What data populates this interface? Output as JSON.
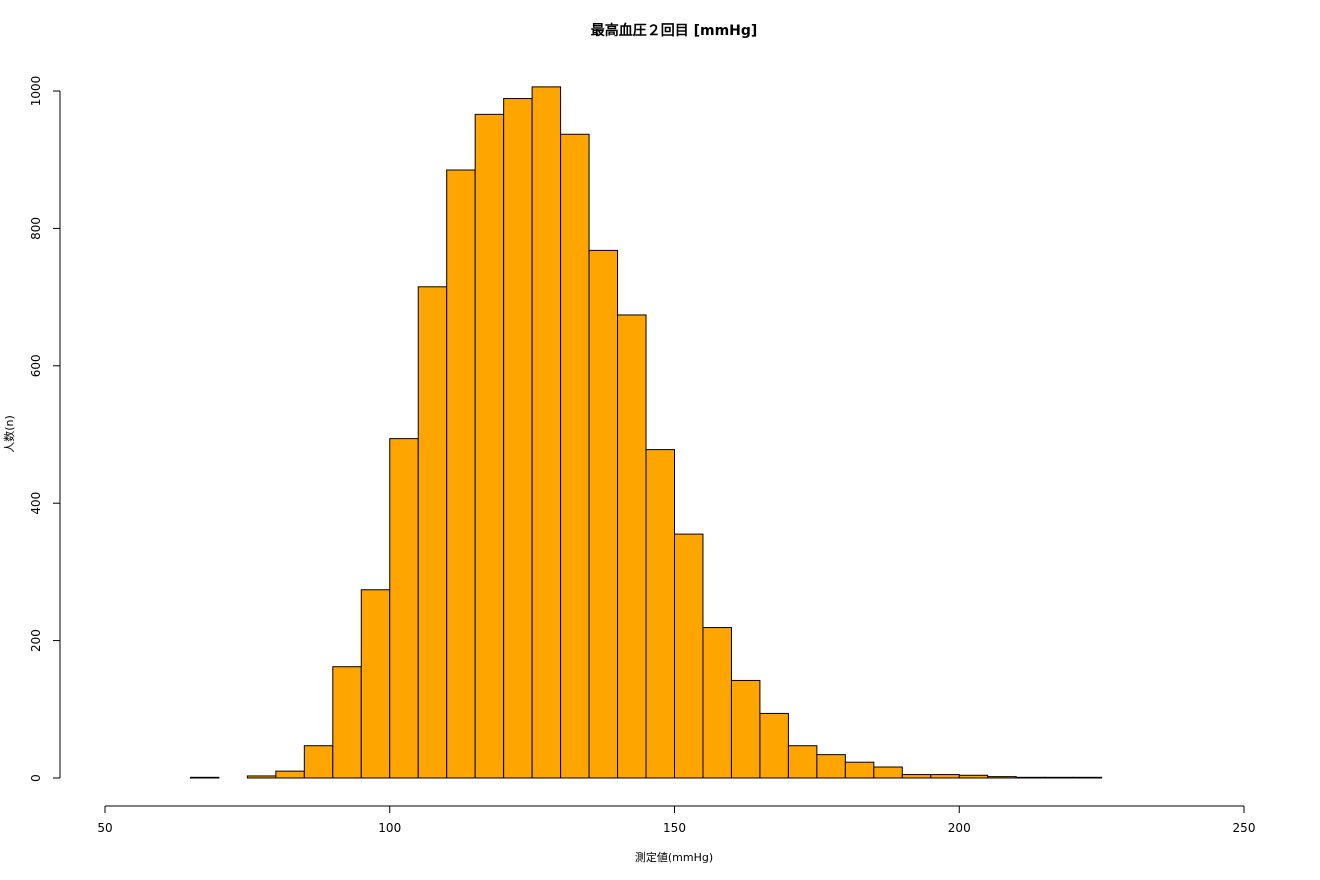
{
  "chart_data": {
    "type": "bar",
    "title": "最高血圧２回目 [mmHg]",
    "xlabel": "測定値(mmHg)",
    "ylabel": "人数(n)",
    "xlim": [
      50,
      250
    ],
    "ylim": [
      0,
      1000
    ],
    "xticks": [
      50,
      100,
      150,
      200,
      250
    ],
    "yticks": [
      0,
      200,
      400,
      600,
      800,
      1000
    ],
    "bar_color": "#FFA500",
    "bin_edges": [
      65,
      70,
      75,
      80,
      85,
      90,
      95,
      100,
      105,
      110,
      115,
      120,
      125,
      130,
      135,
      140,
      145,
      150,
      155,
      160,
      165,
      170,
      175,
      180,
      185,
      190,
      195,
      200,
      205,
      210,
      215,
      220,
      225
    ],
    "values": [
      1,
      0,
      3,
      10,
      47,
      162,
      274,
      494,
      715,
      885,
      966,
      989,
      1006,
      937,
      768,
      674,
      478,
      355,
      219,
      142,
      94,
      47,
      34,
      23,
      16,
      5,
      5,
      4,
      2,
      1,
      1,
      1
    ],
    "grid": false,
    "legend": "none"
  }
}
